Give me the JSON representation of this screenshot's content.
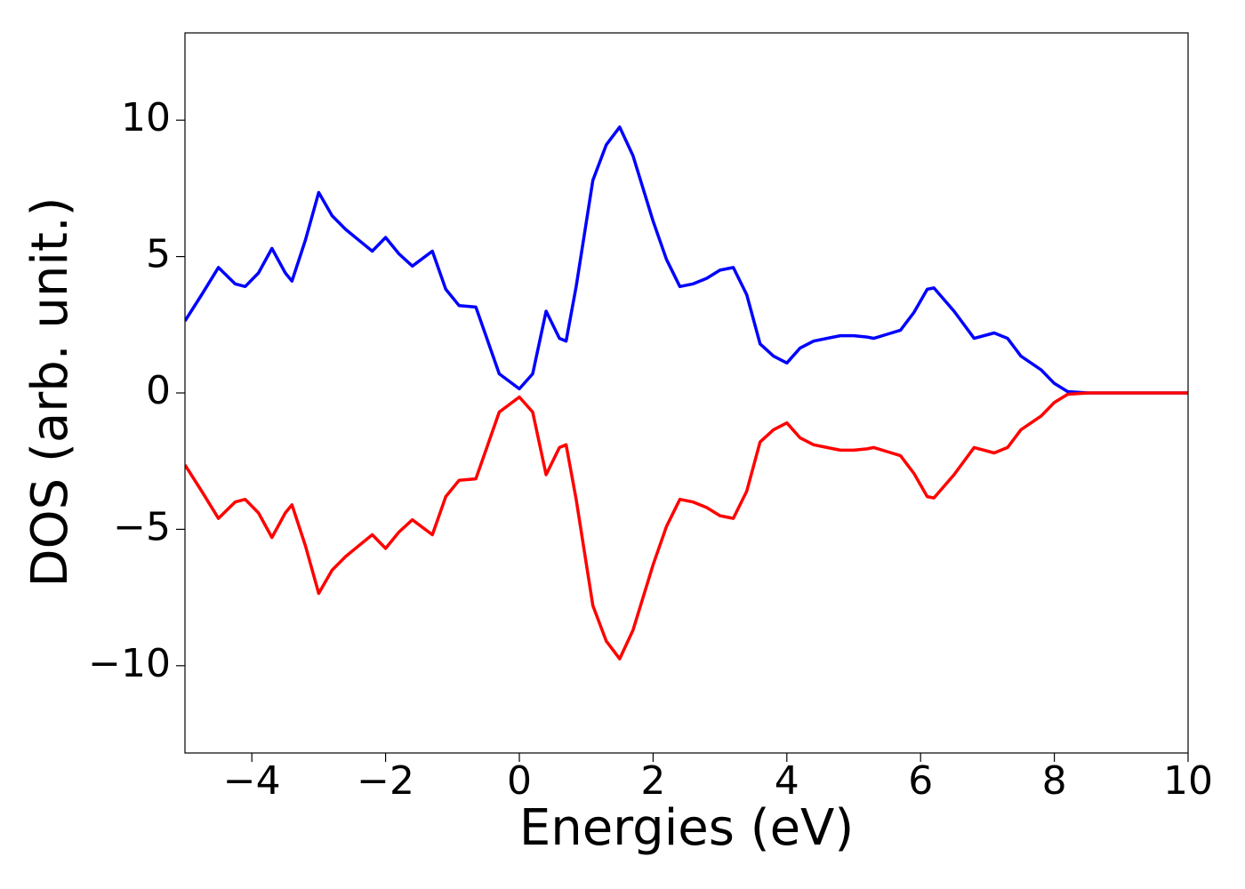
{
  "chart_data": {
    "type": "line",
    "xlabel": "Energies (eV)",
    "ylabel": "DOS (arb. unit.)",
    "x": [
      -5,
      -4.75,
      -4.5,
      -4.25,
      -4.1,
      -3.9,
      -3.7,
      -3.5,
      -3.4,
      -3.2,
      -3.0,
      -2.8,
      -2.6,
      -2.4,
      -2.2,
      -2.0,
      -1.8,
      -1.6,
      -1.3,
      -1.1,
      -0.9,
      -0.65,
      -0.5,
      -0.3,
      0.0,
      0.2,
      0.4,
      0.6,
      0.7,
      0.85,
      1.1,
      1.3,
      1.5,
      1.7,
      2.0,
      2.2,
      2.4,
      2.6,
      2.8,
      3.0,
      3.2,
      3.4,
      3.6,
      3.8,
      4.0,
      4.2,
      4.4,
      4.6,
      4.8,
      5.0,
      5.2,
      5.3,
      5.5,
      5.7,
      5.9,
      6.1,
      6.2,
      6.5,
      6.8,
      7.1,
      7.3,
      7.5,
      7.8,
      8.0,
      8.2,
      8.5,
      10
    ],
    "series": [
      {
        "color": "#0000ff",
        "values": [
          2.64,
          3.6,
          4.6,
          4.0,
          3.9,
          4.4,
          5.3,
          4.4,
          4.1,
          5.6,
          7.35,
          6.5,
          6.0,
          5.6,
          5.2,
          5.7,
          5.1,
          4.65,
          5.2,
          3.8,
          3.2,
          3.15,
          2.1,
          0.7,
          0.15,
          0.7,
          3.0,
          2.0,
          1.9,
          3.9,
          7.8,
          9.1,
          9.75,
          8.7,
          6.3,
          4.9,
          3.9,
          4.0,
          4.2,
          4.5,
          4.6,
          3.6,
          1.8,
          1.35,
          1.1,
          1.65,
          1.9,
          2.0,
          2.1,
          2.1,
          2.05,
          2.0,
          2.15,
          2.3,
          2.95,
          3.8,
          3.85,
          3.0,
          2.0,
          2.2,
          2.0,
          1.35,
          0.85,
          0.35,
          0.05,
          0,
          0
        ]
      },
      {
        "color": "#ff0000",
        "values": [
          -2.64,
          -3.6,
          -4.6,
          -4.0,
          -3.9,
          -4.4,
          -5.3,
          -4.4,
          -4.1,
          -5.6,
          -7.35,
          -6.5,
          -6.0,
          -5.6,
          -5.2,
          -5.7,
          -5.1,
          -4.65,
          -5.2,
          -3.8,
          -3.2,
          -3.15,
          -2.1,
          -0.7,
          -0.15,
          -0.7,
          -3.0,
          -2.0,
          -1.9,
          -3.9,
          -7.8,
          -9.1,
          -9.75,
          -8.7,
          -6.3,
          -4.9,
          -3.9,
          -4.0,
          -4.2,
          -4.5,
          -4.6,
          -3.6,
          -1.8,
          -1.35,
          -1.1,
          -1.65,
          -1.9,
          -2.0,
          -2.1,
          -2.1,
          -2.05,
          -2.0,
          -2.15,
          -2.3,
          -2.95,
          -3.8,
          -3.85,
          -3.0,
          -2.0,
          -2.2,
          -2.0,
          -1.35,
          -0.85,
          -0.35,
          -0.05,
          0,
          0
        ]
      }
    ],
    "xlim": [
      -5,
      10
    ],
    "xticks": [
      {
        "value": -4,
        "label": "−4"
      },
      {
        "value": -2,
        "label": "−2"
      },
      0,
      2,
      4,
      6,
      8,
      10
    ],
    "ylim": [
      -13.2,
      13.2
    ],
    "yticks": [
      {
        "value": -10,
        "label": "−10"
      },
      {
        "value": -5,
        "label": "−5"
      },
      0,
      5,
      10
    ],
    "grid": false
  }
}
